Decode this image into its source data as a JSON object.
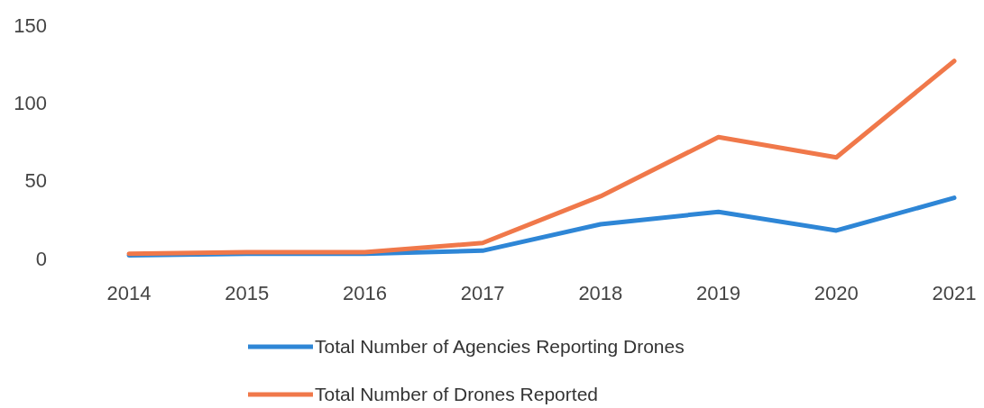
{
  "chart_data": {
    "type": "line",
    "categories": [
      "2014",
      "2015",
      "2016",
      "2017",
      "2018",
      "2019",
      "2020",
      "2021"
    ],
    "series": [
      {
        "name": "Total Number of Agencies Reporting Drones",
        "color": "#2e86d6",
        "values": [
          2,
          3,
          3,
          5,
          22,
          30,
          18,
          39
        ]
      },
      {
        "name": "Total Number of Drones Reported",
        "color": "#f0784a",
        "values": [
          3,
          4,
          4,
          10,
          40,
          78,
          65,
          127
        ]
      }
    ],
    "ylim": [
      0,
      150
    ],
    "yticks": [
      0,
      50,
      100,
      150
    ],
    "grid": false,
    "legend": "bottom",
    "marker": "none",
    "line_style": "solid"
  }
}
